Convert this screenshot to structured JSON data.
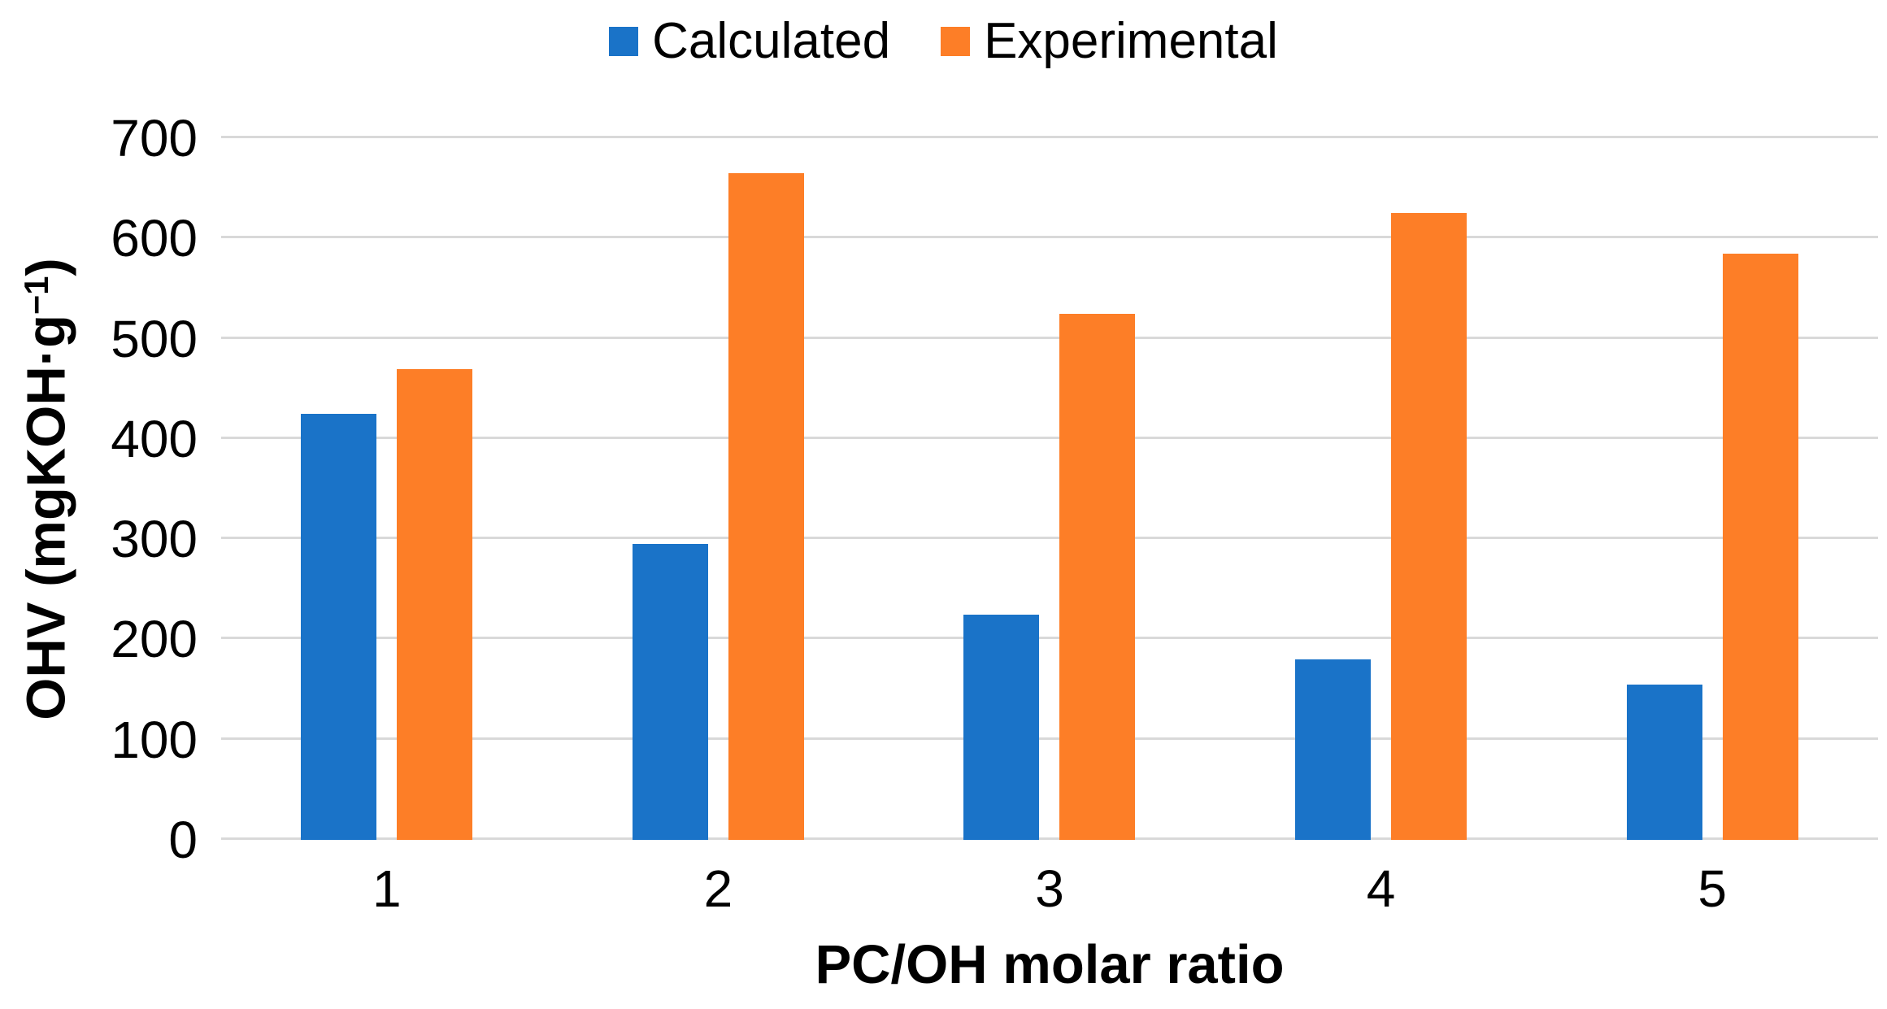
{
  "legend": {
    "items": [
      {
        "label": "Calculated",
        "color": "#1A73C8"
      },
      {
        "label": "Experimental",
        "color": "#FD7E27"
      }
    ]
  },
  "y_axis": {
    "title": "OHV (mgKOH·g⁻¹)",
    "title_main": "OHV (mgKOH·g",
    "title_sup": "−1",
    "title_end": ")",
    "ticks": [
      700,
      600,
      500,
      400,
      300,
      200,
      100,
      0
    ]
  },
  "x_axis": {
    "title": "PC/OH molar ratio",
    "ticks": [
      "1",
      "2",
      "3",
      "4",
      "5"
    ]
  },
  "colors": {
    "background": "#FFFFFF",
    "gridline": "#D9D9D9",
    "text": "#000000",
    "calculated": "#1A73C8",
    "experimental": "#FD7E27"
  },
  "chart_data": {
    "type": "bar",
    "title": "",
    "categories": [
      "1",
      "2",
      "3",
      "4",
      "5"
    ],
    "series": [
      {
        "name": "Calculated",
        "color": "#1A73C8",
        "values": [
          425,
          295,
          225,
          180,
          155
        ]
      },
      {
        "name": "Experimental",
        "color": "#FD7E27",
        "values": [
          470,
          665,
          525,
          625,
          585
        ]
      }
    ],
    "xlabel": "PC/OH molar ratio",
    "ylabel": "OHV (mgKOH·g⁻¹)",
    "ylim": [
      0,
      700
    ],
    "ytick_step": 100,
    "grid": "horizontal",
    "legend_position": "top-center"
  }
}
